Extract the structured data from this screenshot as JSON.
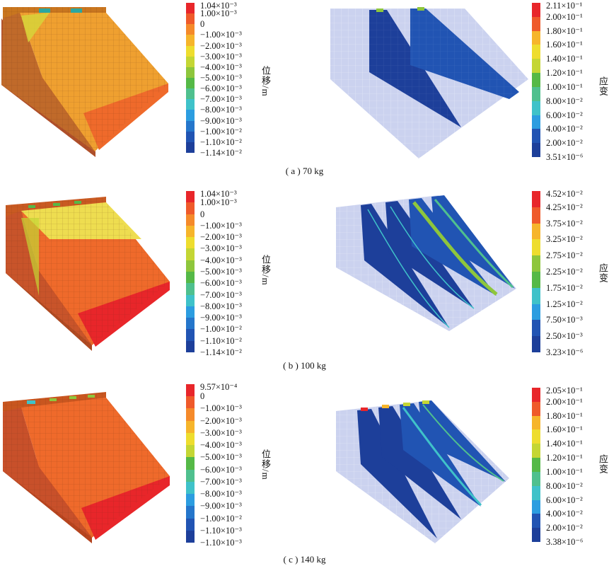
{
  "palette": [
    "#e8262a",
    "#ef5a2a",
    "#f58a2a",
    "#f6b52b",
    "#eedd2e",
    "#c4d634",
    "#8ec63c",
    "#55b947",
    "#4fc08e",
    "#3fc2c9",
    "#2c9de0",
    "#2576cb",
    "#2154b3",
    "#1d3f9a"
  ],
  "rows": [
    {
      "caption": "( a ) 70 kg",
      "displacement": {
        "unit_label": "位移/m",
        "ticks": [
          "1.04×10⁻³",
          "1.00×10⁻³",
          "0",
          "−1.00×10⁻³",
          "−2.00×10⁻³",
          "−3.00×10⁻³",
          "−4.00×10⁻³",
          "−5.00×10⁻³",
          "−6.00×10⁻³",
          "−7.00×10⁻³",
          "−8.00×10⁻³",
          "−9.00×10⁻³",
          "−1.00×10⁻²",
          "−1.10×10⁻²",
          "−1.14×10⁻²"
        ]
      },
      "strain": {
        "unit_label": "应变",
        "ticks": [
          "2.11×10⁻¹",
          "2.00×10⁻¹",
          "1.80×10⁻¹",
          "1.60×10⁻¹",
          "1.40×10⁻¹",
          "1.20×10⁻¹",
          "1.00×10⁻¹",
          "8.00×10⁻²",
          "6.00×10⁻²",
          "4.00×10⁻²",
          "2.00×10⁻²",
          "3.51×10⁻⁶"
        ]
      }
    },
    {
      "caption": "( b ) 100 kg",
      "displacement": {
        "unit_label": "位移/m",
        "ticks": [
          "1.04×10⁻³",
          "1.00×10⁻³",
          "0",
          "−1.00×10⁻³",
          "−2.00×10⁻³",
          "−3.00×10⁻³",
          "−4.00×10⁻³",
          "−5.00×10⁻³",
          "−6.00×10⁻³",
          "−7.00×10⁻³",
          "−8.00×10⁻³",
          "−9.00×10⁻³",
          "−1.00×10⁻²",
          "−1.10×10⁻²",
          "−1.14×10⁻²"
        ]
      },
      "strain": {
        "unit_label": "应变",
        "ticks": [
          "4.52×10⁻²",
          "4.25×10⁻²",
          "3.75×10⁻²",
          "3.25×10⁻²",
          "2.75×10⁻²",
          "2.25×10⁻²",
          "1.75×10⁻²",
          "1.25×10⁻²",
          "7.50×10⁻³",
          "2.50×10⁻³",
          "3.23×10⁻⁶"
        ]
      }
    },
    {
      "caption": "( c ) 140 kg",
      "displacement": {
        "unit_label": "位移/m",
        "ticks": [
          "9.57×10⁻⁴",
          "0",
          "−1.00×10⁻³",
          "−2.00×10⁻³",
          "−3.00×10⁻³",
          "−4.00×10⁻³",
          "−5.00×10⁻³",
          "−6.00×10⁻³",
          "−7.00×10⁻³",
          "−8.00×10⁻³",
          "−9.00×10⁻³",
          "−1.00×10⁻²",
          "−1.10×10⁻³",
          "−1.10×10⁻³"
        ]
      },
      "strain": {
        "unit_label": "应变",
        "ticks": [
          "2.05×10⁻¹",
          "2.00×10⁻¹",
          "1.80×10⁻¹",
          "1.60×10⁻¹",
          "1.40×10⁻¹",
          "1.20×10⁻¹",
          "1.00×10⁻¹",
          "8.00×10⁻²",
          "6.00×10⁻²",
          "4.00×10⁻²",
          "2.00×10⁻²",
          "3.38×10⁻⁶"
        ]
      }
    }
  ]
}
